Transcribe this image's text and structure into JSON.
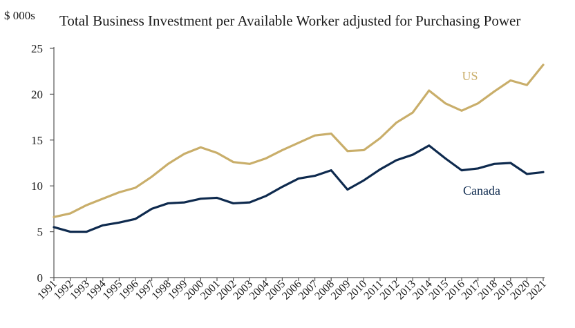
{
  "colors": {
    "us": "#C9AE6A",
    "canada": "#0E2A4E",
    "axis": "#555555"
  },
  "chart_data": {
    "type": "line",
    "title": "Total Business Investment per Available Worker adjusted for Purchasing Power",
    "y_unit_label": "$ 000s",
    "xlabel": "",
    "ylabel": "",
    "ylim": [
      0,
      25
    ],
    "yticks": [
      "0",
      "5",
      "10",
      "15",
      "20",
      "25"
    ],
    "grid": false,
    "x": [
      "1991",
      "1992",
      "1993",
      "1994",
      "1995",
      "1996",
      "1997",
      "1998",
      "1999",
      "2000",
      "2001",
      "2002",
      "2003",
      "2004",
      "2005",
      "2006",
      "2007",
      "2008",
      "2009",
      "2010",
      "2011",
      "2012",
      "2013",
      "2014",
      "2015",
      "2016",
      "2017",
      "2018",
      "2019",
      "2020",
      "2021"
    ],
    "series": [
      {
        "name": "US",
        "color_key": "us",
        "values": [
          6.6,
          7.0,
          7.9,
          8.6,
          9.3,
          9.8,
          11.0,
          12.4,
          13.5,
          14.2,
          13.6,
          12.6,
          12.4,
          13.0,
          13.9,
          14.7,
          15.5,
          15.7,
          13.8,
          13.9,
          15.2,
          16.9,
          18.0,
          20.4,
          19.0,
          18.2,
          19.0,
          20.3,
          21.5,
          21.0,
          23.2
        ]
      },
      {
        "name": "Canada",
        "color_key": "canada",
        "values": [
          5.5,
          5.0,
          5.0,
          5.7,
          6.0,
          6.4,
          7.5,
          8.1,
          8.2,
          8.6,
          8.7,
          8.1,
          8.2,
          8.9,
          9.9,
          10.8,
          11.1,
          11.7,
          9.6,
          10.6,
          11.8,
          12.8,
          13.4,
          14.4,
          13.0,
          11.7,
          11.9,
          12.4,
          12.5,
          11.3,
          11.5
        ]
      }
    ]
  }
}
